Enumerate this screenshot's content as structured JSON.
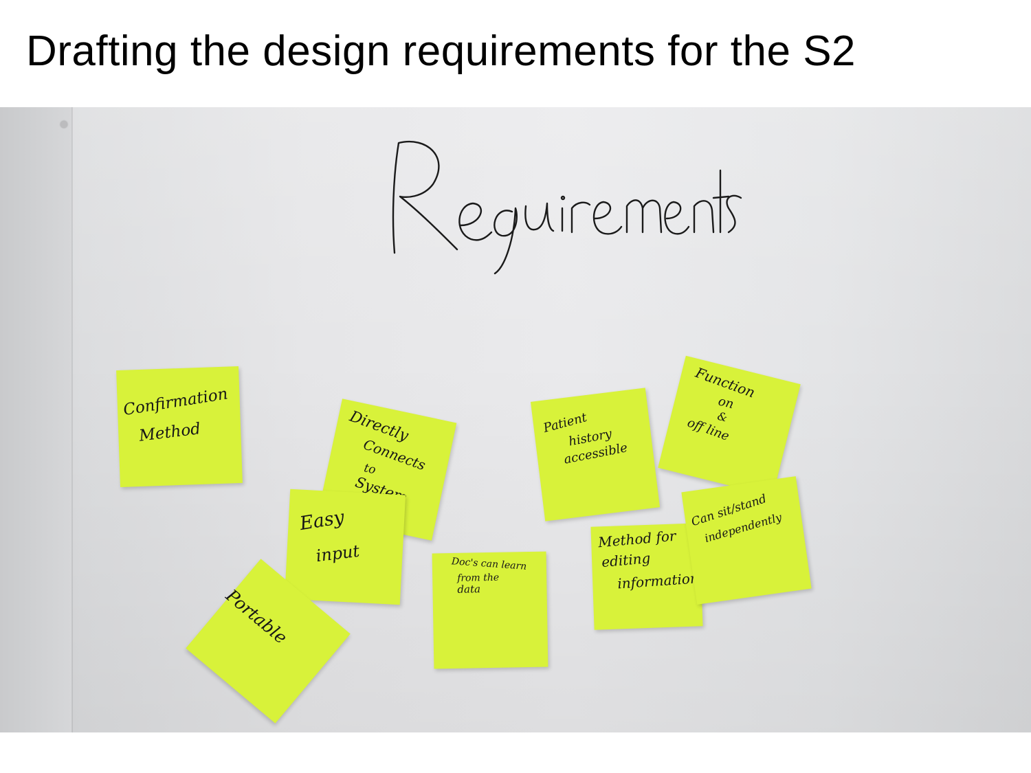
{
  "slide": {
    "title": "Drafting the design requirements for the S2"
  },
  "photo": {
    "heading": "Requirements",
    "notes": [
      {
        "id": "confirmation",
        "lines": [
          "Confirmation",
          "Method"
        ]
      },
      {
        "id": "directly-connects",
        "lines": [
          "Directly",
          "Connects",
          "to",
          "System"
        ]
      },
      {
        "id": "easy-input",
        "lines": [
          "Easy",
          "input"
        ]
      },
      {
        "id": "portable",
        "lines": [
          "Portable"
        ]
      },
      {
        "id": "docs-learn",
        "lines": [
          "Doc's can learn",
          "from the",
          "data"
        ]
      },
      {
        "id": "patient-history",
        "lines": [
          "Patient",
          "history",
          "accessible"
        ]
      },
      {
        "id": "method-editing",
        "lines": [
          "Method for",
          "editing",
          "information"
        ]
      },
      {
        "id": "function-offline",
        "lines": [
          "Function",
          "on",
          "&",
          "off line"
        ]
      },
      {
        "id": "sit-stand",
        "lines": [
          "Can sit/stand",
          "independently"
        ]
      }
    ],
    "colors": {
      "note": "#d8f23a",
      "wall": "#e6e6e8",
      "ink": "#161616"
    }
  }
}
